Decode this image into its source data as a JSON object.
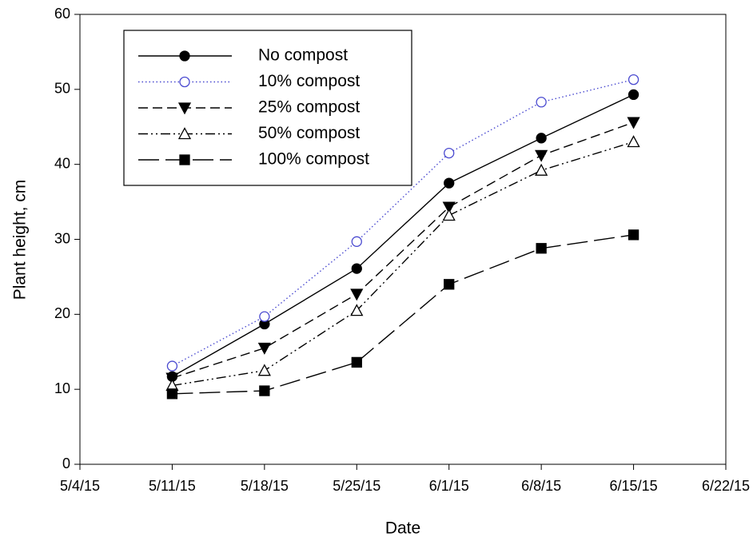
{
  "chart_data": {
    "type": "line",
    "x_label": "Date",
    "y_label": "Plant height, cm",
    "x": [
      "5/11/15",
      "5/18/15",
      "5/25/15",
      "6/1/15",
      "6/8/15",
      "6/15/15"
    ],
    "xlim": [
      "5/4/15",
      "6/22/15"
    ],
    "xticks": [
      "5/4/15",
      "5/11/15",
      "5/18/15",
      "5/25/15",
      "6/1/15",
      "6/8/15",
      "6/15/15",
      "6/22/15"
    ],
    "ylim": [
      0,
      60
    ],
    "yticks": [
      0,
      10,
      20,
      30,
      40,
      50,
      60
    ],
    "legend": "upper left",
    "series": [
      {
        "name": "No compost",
        "color": "#000000",
        "marker": "circle-filled",
        "dash": "solid",
        "values": [
          11.7,
          18.7,
          26.1,
          37.5,
          43.5,
          49.3
        ]
      },
      {
        "name": "10% compost",
        "color": "#4a4ad0",
        "marker": "circle-open",
        "dash": "dotted",
        "values": [
          13.1,
          19.7,
          29.7,
          41.5,
          48.3,
          51.3
        ]
      },
      {
        "name": "25% compost",
        "color": "#000000",
        "marker": "triangle-down-filled",
        "dash": "dashed",
        "values": [
          11.5,
          15.5,
          22.7,
          34.3,
          41.2,
          45.6
        ]
      },
      {
        "name": "50% compost",
        "color": "#000000",
        "marker": "triangle-up-open",
        "dash": "dash-dot-dot",
        "values": [
          10.5,
          12.5,
          20.5,
          33.2,
          39.2,
          43.0
        ]
      },
      {
        "name": "100% compost",
        "color": "#000000",
        "marker": "square-filled",
        "dash": "long-dash",
        "values": [
          9.4,
          9.8,
          13.6,
          24.0,
          28.8,
          30.6
        ]
      }
    ]
  }
}
